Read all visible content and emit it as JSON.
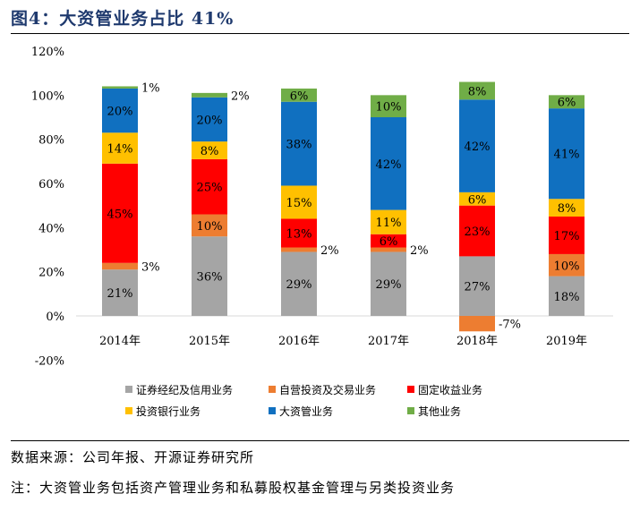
{
  "title": "图4：大资管业务占比 41%",
  "source": "数据来源：公司年报、开源证券研究所",
  "note": "注：大资管业务包括资产管理业务和私募股权基金管理与另类投资业务",
  "chart_data": {
    "type": "bar",
    "stacked": true,
    "categories": [
      "2014年",
      "2015年",
      "2016年",
      "2017年",
      "2018年",
      "2019年"
    ],
    "ylim": [
      -20,
      120
    ],
    "yticks": [
      "-20%",
      "0%",
      "20%",
      "40%",
      "60%",
      "80%",
      "100%",
      "120%"
    ],
    "ytick_values": [
      -20,
      0,
      20,
      40,
      60,
      80,
      100,
      120
    ],
    "grid": false,
    "legend_position": "bottom",
    "series": [
      {
        "name": "证券经纪及信用业务",
        "color": "#a5a5a5",
        "values": [
          21,
          36,
          29,
          29,
          27,
          18
        ],
        "labels": [
          "21%",
          "36%",
          "29%",
          "29%",
          "27%",
          "18%"
        ]
      },
      {
        "name": "自营投资及交易业务",
        "color": "#ed7d31",
        "values": [
          3,
          10,
          2,
          2,
          -7,
          10
        ],
        "labels": [
          "3%",
          "10%",
          "2%",
          "2%",
          "-7%",
          "10%"
        ]
      },
      {
        "name": "固定收益业务",
        "color": "#ff0000",
        "values": [
          45,
          25,
          13,
          6,
          23,
          17
        ],
        "labels": [
          "45%",
          "25%",
          "13%",
          "6%",
          "23%",
          "17%"
        ]
      },
      {
        "name": "投资银行业务",
        "color": "#ffc000",
        "values": [
          14,
          8,
          15,
          11,
          6,
          8
        ],
        "labels": [
          "14%",
          "8%",
          "15%",
          "11%",
          "6%",
          "8%"
        ]
      },
      {
        "name": "大资管业务",
        "color": "#1070c0",
        "values": [
          20,
          20,
          38,
          42,
          42,
          41
        ],
        "labels": [
          "20%",
          "20%",
          "38%",
          "42%",
          "42%",
          "41%"
        ]
      },
      {
        "name": "其他业务",
        "color": "#70ad47",
        "values": [
          1,
          2,
          6,
          10,
          8,
          6
        ],
        "labels": [
          "1%",
          "2%",
          "6%",
          "10%",
          "8%",
          "6%"
        ]
      }
    ]
  }
}
